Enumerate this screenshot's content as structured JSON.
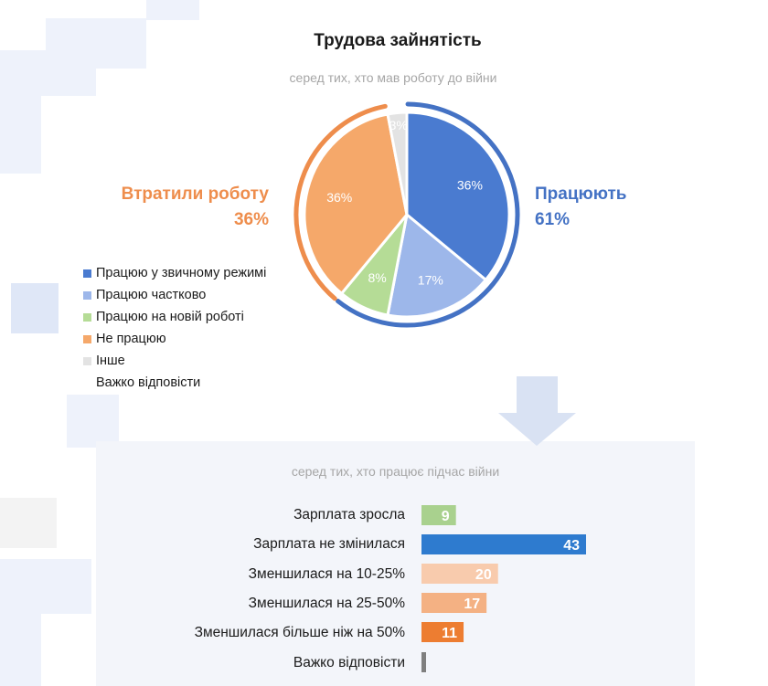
{
  "chart_data": [
    {
      "type": "pie",
      "title": "Трудова зайнятість",
      "subtitle": "серед тих, хто мав роботу до війни",
      "slices": [
        {
          "label": "Працюю у звичному режимі",
          "value": 36,
          "value_label": "36%",
          "color": "#4a7bd0"
        },
        {
          "label": "Працюю частково",
          "value": 17,
          "value_label": "17%",
          "color": "#9db7ea"
        },
        {
          "label": "Працюю на новій роботі",
          "value": 8,
          "value_label": "8%",
          "color": "#b5dc96"
        },
        {
          "label": "Не працюю",
          "value": 36,
          "value_label": "36%",
          "color": "#f5a86a"
        },
        {
          "label": "Інше",
          "value": 3,
          "value_label": "3%",
          "color": "#e3e3e3"
        },
        {
          "label": "Важко відповісти",
          "value": 0,
          "value_label": "",
          "color": ""
        }
      ],
      "groups": [
        {
          "label": "Працюють",
          "value_label": "61%",
          "color": "#4472c4"
        },
        {
          "label": "Втратили роботу",
          "value_label": "36%",
          "color": "#ee8d4c"
        }
      ],
      "legend_position": "left"
    },
    {
      "type": "bar",
      "orientation": "horizontal",
      "subtitle": "серед тих, хто працює підчас війни",
      "categories": [
        "Зарплата зросла",
        "Зарплата не змінилася",
        "Зменшилася на 10-25%",
        "Зменшилася на 25-50%",
        "Зменшилася більше ніж на 50%",
        "Важко відповісти"
      ],
      "values": [
        9,
        43,
        20,
        17,
        11,
        1
      ],
      "value_labels": [
        "9",
        "43",
        "20",
        "17",
        "11",
        ""
      ],
      "colors": [
        "#a9d18e",
        "#2e7bcf",
        "#f8cbad",
        "#f4b183",
        "#ed7d31",
        "#7f7f7f"
      ]
    }
  ]
}
